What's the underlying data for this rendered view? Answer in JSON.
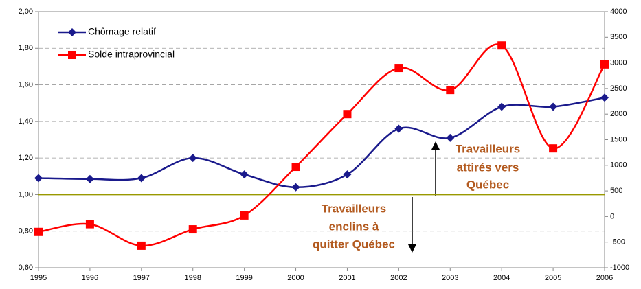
{
  "chart_data": {
    "type": "line",
    "categories": [
      "1995",
      "1996",
      "1997",
      "1998",
      "1999",
      "2000",
      "2001",
      "2002",
      "2003",
      "2004",
      "2005",
      "2006"
    ],
    "series": [
      {
        "name": "Chômage relatif",
        "color": "#1a1a8c",
        "marker": "diamond",
        "values": [
          1.09,
          1.085,
          1.09,
          1.2,
          1.11,
          1.04,
          1.11,
          1.36,
          1.31,
          1.48,
          1.48,
          1.53
        ]
      },
      {
        "name": "Solde intraprovincial",
        "color": "#ff0000",
        "marker": "square",
        "axis": "y2",
        "values": [
          -300,
          -150,
          -570,
          -250,
          20,
          970,
          2000,
          2900,
          2470,
          3340,
          1330,
          2970
        ]
      }
    ],
    "ylim": [
      0.6,
      2.0
    ],
    "yticks": [
      {
        "value": 0.6,
        "label": "0,60"
      },
      {
        "value": 0.8,
        "label": "0,80"
      },
      {
        "value": 1.0,
        "label": "1,00"
      },
      {
        "value": 1.2,
        "label": "1,20"
      },
      {
        "value": 1.4,
        "label": "1,40"
      },
      {
        "value": 1.6,
        "label": "1,60"
      },
      {
        "value": 1.8,
        "label": "1,80"
      },
      {
        "value": 2.0,
        "label": "2,00"
      }
    ],
    "y2lim": [
      -1000,
      4000
    ],
    "y2ticks": [
      -1000,
      -500,
      0,
      500,
      1000,
      1500,
      2000,
      2500,
      3000,
      3500,
      4000
    ],
    "reference_line": {
      "value": 1.0,
      "color": "#999900"
    },
    "grid": true,
    "legend": "top-left",
    "annotations": [
      {
        "lines": [
          "Travailleurs",
          "attirés vers",
          "Québec"
        ],
        "color": "#b35a1f"
      },
      {
        "lines": [
          "Travailleurs",
          "enclins à",
          "quitter Québec"
        ],
        "color": "#b35a1f"
      }
    ]
  }
}
